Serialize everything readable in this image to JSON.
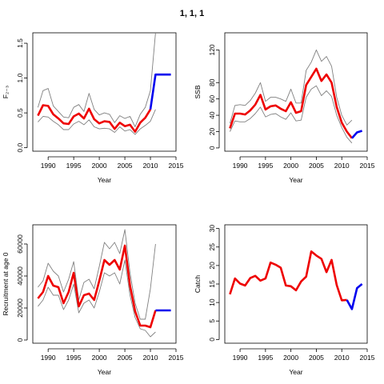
{
  "title": "1, 1, 1",
  "colors": {
    "estimate": "#ee0000",
    "forecast": "#0000ee",
    "bounds": "#808080",
    "axes": "#000000"
  },
  "chart_data": [
    {
      "type": "line",
      "id": "fbar",
      "xlabel": "Year",
      "ylabel": "F₂₋₃",
      "xlim": [
        1987,
        2015
      ],
      "ylim": [
        -0.05,
        1.65
      ],
      "xticks": [
        1990,
        1995,
        2000,
        2005,
        2010,
        2015
      ],
      "yticks": [
        0.0,
        0.5,
        1.0,
        1.5
      ],
      "ytick_labels": [
        "0.0",
        "0.5",
        "1.0",
        "1.5"
      ],
      "series": [
        {
          "role": "upper",
          "x": [
            1988,
            1989,
            1990,
            1991,
            1992,
            1993,
            1994,
            1995,
            1996,
            1997,
            1998,
            1999,
            2000,
            2001,
            2002,
            2003,
            2004,
            2005,
            2006,
            2007,
            2008,
            2009,
            2010,
            2011
          ],
          "values": [
            0.58,
            0.82,
            0.85,
            0.6,
            0.52,
            0.44,
            0.43,
            0.58,
            0.62,
            0.52,
            0.78,
            0.55,
            0.47,
            0.5,
            0.48,
            0.36,
            0.46,
            0.42,
            0.45,
            0.3,
            0.48,
            0.58,
            0.82,
            1.65
          ]
        },
        {
          "role": "lower",
          "x": [
            1988,
            1989,
            1990,
            1991,
            1992,
            1993,
            1994,
            1995,
            1996,
            1997,
            1998,
            1999,
            2000,
            2001,
            2002,
            2003,
            2004,
            2005,
            2006,
            2007,
            2008,
            2009,
            2010,
            2011
          ],
          "values": [
            0.37,
            0.45,
            0.44,
            0.38,
            0.33,
            0.26,
            0.26,
            0.34,
            0.38,
            0.33,
            0.4,
            0.3,
            0.27,
            0.28,
            0.27,
            0.22,
            0.3,
            0.24,
            0.26,
            0.19,
            0.27,
            0.32,
            0.38,
            0.55
          ]
        },
        {
          "role": "estimate",
          "x": [
            1988,
            1989,
            1990,
            1991,
            1992,
            1993,
            1994,
            1995,
            1996,
            1997,
            1998,
            1999,
            2000,
            2001,
            2002,
            2003,
            2004,
            2005,
            2006,
            2007,
            2008,
            2009,
            2010
          ],
          "values": [
            0.46,
            0.61,
            0.6,
            0.48,
            0.42,
            0.35,
            0.34,
            0.45,
            0.49,
            0.42,
            0.56,
            0.41,
            0.35,
            0.38,
            0.37,
            0.27,
            0.36,
            0.31,
            0.33,
            0.23,
            0.36,
            0.43,
            0.55
          ]
        },
        {
          "role": "forecast",
          "x": [
            2010,
            2011,
            2012,
            2013,
            2014
          ],
          "values": [
            0.55,
            1.05,
            1.05,
            1.05,
            1.05
          ]
        }
      ]
    },
    {
      "type": "line",
      "id": "ssb",
      "xlabel": "Year",
      "ylabel": "SSB",
      "xlim": [
        1987,
        2015
      ],
      "ylim": [
        -4,
        141
      ],
      "xticks": [
        1990,
        1995,
        2000,
        2005,
        2010,
        2015
      ],
      "yticks": [
        0,
        20,
        40,
        60,
        80,
        120
      ],
      "ytick_labels": [
        "0",
        "20",
        "40",
        "60",
        "80",
        "120"
      ],
      "series": [
        {
          "role": "upper",
          "x": [
            1988,
            1989,
            1990,
            1991,
            1992,
            1993,
            1994,
            1995,
            1996,
            1997,
            1998,
            1999,
            2000,
            2001,
            2002,
            2003,
            2004,
            2005,
            2006,
            2007,
            2008,
            2009,
            2010,
            2011,
            2012
          ],
          "values": [
            30,
            52,
            53,
            52,
            58,
            67,
            80,
            57,
            62,
            62,
            60,
            57,
            72,
            55,
            55,
            95,
            105,
            120,
            106,
            112,
            100,
            62,
            40,
            28,
            34
          ]
        },
        {
          "role": "lower",
          "x": [
            1988,
            1989,
            1990,
            1991,
            1992,
            1993,
            1994,
            1995,
            1996,
            1997,
            1998,
            1999,
            2000,
            2001,
            2002,
            2003,
            2004,
            2005,
            2006,
            2007,
            2008,
            2009,
            2010,
            2011,
            2012
          ],
          "values": [
            20,
            33,
            32,
            32,
            36,
            42,
            50,
            38,
            41,
            42,
            38,
            35,
            43,
            33,
            34,
            62,
            72,
            76,
            64,
            70,
            63,
            40,
            25,
            13,
            6
          ]
        },
        {
          "role": "estimate",
          "x": [
            1988,
            1989,
            1990,
            1991,
            1992,
            1993,
            1994,
            1995,
            1996,
            1997,
            1998,
            1999,
            2000,
            2001,
            2002,
            2003,
            2004,
            2005,
            2006,
            2007,
            2008,
            2009,
            2010,
            2011,
            2012
          ],
          "values": [
            24,
            42,
            42,
            41,
            46,
            53,
            65,
            47,
            51,
            52,
            48,
            45,
            56,
            43,
            45,
            77,
            87,
            97,
            82,
            90,
            80,
            50,
            31,
            20,
            12
          ]
        },
        {
          "role": "forecast",
          "x": [
            2012,
            2013,
            2014
          ],
          "values": [
            12,
            19,
            21
          ]
        }
      ]
    },
    {
      "type": "line",
      "id": "recruitment",
      "xlabel": "Year",
      "ylabel": "Recruitment at age 0",
      "xlim": [
        1987,
        2015
      ],
      "ylim": [
        -2000,
        72000
      ],
      "xticks": [
        1990,
        1995,
        2000,
        2005,
        2010,
        2015
      ],
      "yticks": [
        0,
        20000,
        40000,
        60000
      ],
      "ytick_labels": [
        "0",
        "20000",
        "40000",
        "60000"
      ],
      "series": [
        {
          "role": "upper",
          "x": [
            1988,
            1989,
            1990,
            1991,
            1992,
            1993,
            1994,
            1995,
            1996,
            1997,
            1998,
            1999,
            2000,
            2001,
            2002,
            2003,
            2004,
            2005,
            2006,
            2007,
            2008,
            2009,
            2010,
            2011
          ],
          "values": [
            33000,
            37000,
            48000,
            43000,
            40000,
            30000,
            38000,
            49000,
            25000,
            36000,
            38000,
            32000,
            46000,
            61000,
            57000,
            61000,
            54000,
            69000,
            42000,
            23000,
            13000,
            13000,
            32000,
            60000
          ]
        },
        {
          "role": "lower",
          "x": [
            1988,
            1989,
            1990,
            1991,
            1992,
            1993,
            1994,
            1995,
            1996,
            1997,
            1998,
            1999,
            2000,
            2001,
            2002,
            2003,
            2004,
            2005,
            2006,
            2007,
            2008,
            2009,
            2010,
            2011
          ],
          "values": [
            21000,
            25000,
            33000,
            28000,
            28000,
            19000,
            25000,
            35000,
            17000,
            23000,
            25000,
            20000,
            30000,
            42000,
            40000,
            42000,
            35000,
            50000,
            28000,
            14000,
            7000,
            6000,
            2000,
            5000
          ]
        },
        {
          "role": "estimate",
          "x": [
            1988,
            1989,
            1990,
            1991,
            1992,
            1993,
            1994,
            1995,
            1996,
            1997,
            1998,
            1999,
            2000,
            2001,
            2002,
            2003,
            2004,
            2005,
            2006,
            2007,
            2008,
            2009,
            2010,
            2011
          ],
          "values": [
            26000,
            30000,
            40000,
            34000,
            33000,
            23000,
            30000,
            42000,
            21000,
            28000,
            29000,
            25000,
            37000,
            50000,
            47000,
            50000,
            44000,
            59000,
            34000,
            18000,
            9000,
            9000,
            8000,
            18500
          ]
        },
        {
          "role": "forecast",
          "x": [
            2011,
            2012,
            2013,
            2014
          ],
          "values": [
            18500,
            18500,
            18500,
            18500
          ]
        }
      ]
    },
    {
      "type": "line",
      "id": "catch",
      "xlabel": "Year",
      "ylabel": "Catch",
      "xlim": [
        1987,
        2015
      ],
      "ylim": [
        -1,
        31
      ],
      "xticks": [
        1990,
        1995,
        2000,
        2005,
        2010,
        2015
      ],
      "yticks": [
        0,
        5,
        10,
        15,
        20,
        25,
        30
      ],
      "ytick_labels": [
        "0",
        "5",
        "10",
        "15",
        "20",
        "25",
        "30"
      ],
      "series": [
        {
          "role": "estimate",
          "x": [
            1988,
            1989,
            1990,
            1991,
            1992,
            1993,
            1994,
            1995,
            1996,
            1997,
            1998,
            1999,
            2000,
            2001,
            2002,
            2003,
            2004,
            2005,
            2006,
            2007,
            2008,
            2009,
            2010,
            2011
          ],
          "values": [
            12.2,
            16.5,
            15.1,
            14.6,
            16.6,
            17.2,
            15.9,
            16.5,
            20.8,
            20.2,
            19.4,
            14.6,
            14.4,
            13.3,
            15.7,
            17,
            23.8,
            22.7,
            21.8,
            18.2,
            21.5,
            14.7,
            10.6,
            10.7
          ]
        },
        {
          "role": "forecast",
          "x": [
            2011,
            2012,
            2013,
            2014
          ],
          "values": [
            10.7,
            8.2,
            13.9,
            15
          ]
        }
      ]
    }
  ]
}
